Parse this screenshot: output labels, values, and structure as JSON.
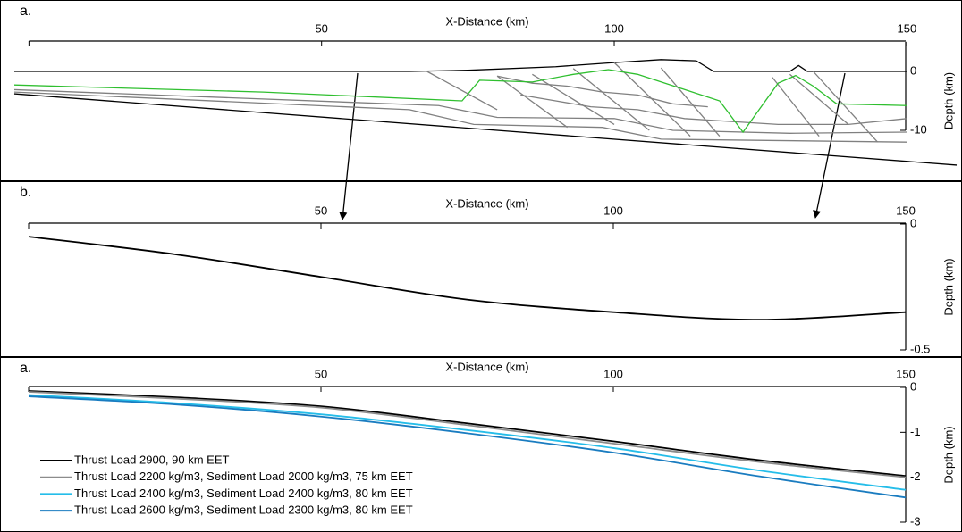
{
  "chart_data": [
    {
      "type": "line",
      "panel_label": "a.",
      "xlabel": "X-Distance (km)",
      "ylabel": "Depth (km)",
      "xlim": [
        -2.5,
        158.5
      ],
      "ylim": [
        -18,
        5
      ],
      "xticks": [
        0,
        50,
        100,
        150
      ],
      "xtick_labels_shown": [
        false,
        true,
        true,
        true
      ],
      "yticks": [
        0,
        -10
      ],
      "series": [
        {
          "color": "#000000",
          "x": [
            -2.5,
            65,
            75,
            90,
            100,
            108,
            114,
            117,
            130,
            131.5,
            133,
            150
          ],
          "values": [
            0,
            0,
            0.2,
            0.8,
            1.5,
            2,
            1.8,
            0,
            0,
            1,
            0,
            0
          ]
        },
        {
          "color": "#000000",
          "x": [
            -2.5,
            158.5
          ],
          "values": [
            -3.8,
            -15.9
          ]
        },
        {
          "color": "#808080",
          "x": [
            -2.5,
            70,
            80,
            100,
            110,
            130,
            150
          ],
          "values": [
            -3.1,
            -5.8,
            -7.8,
            -8,
            -10,
            -10.5,
            -10.3
          ]
        },
        {
          "color": "#808080",
          "x": [
            -2.5,
            65,
            76,
            98,
            108,
            150
          ],
          "values": [
            -3.5,
            -6.5,
            -9,
            -9.5,
            -11.5,
            -12
          ]
        },
        {
          "color": "#808080",
          "x": [
            80,
            86,
            92,
            98,
            104,
            110,
            116
          ],
          "values": [
            -0.8,
            -2,
            -2.5,
            -3.5,
            -4,
            -5.5,
            -6
          ]
        },
        {
          "color": "#808080",
          "x": [
            84,
            90,
            96,
            104,
            112,
            120,
            128,
            140,
            150
          ],
          "values": [
            -4,
            -5,
            -6,
            -6.5,
            -8,
            -8.5,
            -9,
            -9,
            -8
          ]
        },
        {
          "color": "#808080",
          "x": [
            68,
            80
          ],
          "values": [
            0,
            -6.5
          ]
        },
        {
          "color": "#808080",
          "x": [
            80,
            92
          ],
          "values": [
            -0.8,
            -9.5
          ]
        },
        {
          "color": "#808080",
          "x": [
            86,
            100
          ],
          "values": [
            -0.5,
            -9
          ]
        },
        {
          "color": "#808080",
          "x": [
            93,
            106
          ],
          "values": [
            0.5,
            -10
          ]
        },
        {
          "color": "#808080",
          "x": [
            100,
            113
          ],
          "values": [
            1.5,
            -11
          ]
        },
        {
          "color": "#808080",
          "x": [
            108,
            118
          ],
          "values": [
            0.6,
            -11
          ]
        },
        {
          "color": "#808080",
          "x": [
            127,
            135
          ],
          "values": [
            -1,
            -11
          ]
        },
        {
          "color": "#808080",
          "x": [
            130,
            140
          ],
          "values": [
            -0.5,
            -9
          ]
        },
        {
          "color": "#808080",
          "x": [
            134,
            145
          ],
          "values": [
            0,
            -12
          ]
        },
        {
          "color": "#2fbf2f",
          "x": [
            -2.5,
            40,
            74,
            77,
            86,
            93,
            99,
            104,
            118,
            122,
            128,
            131,
            134,
            138,
            150
          ],
          "values": [
            -2.3,
            -3.5,
            -5,
            -1.5,
            -1.8,
            -0.5,
            0.3,
            -0.5,
            -5,
            -10.3,
            -2,
            -0.7,
            -2.5,
            -5.5,
            -5.8
          ]
        }
      ]
    },
    {
      "type": "line",
      "panel_label": "b.",
      "xlabel": "X-Distance (km)",
      "ylabel": "Depth (km)",
      "xlim": [
        0,
        150
      ],
      "ylim": [
        -0.5,
        0
      ],
      "xticks": [
        0,
        50,
        100,
        150
      ],
      "xtick_labels_shown": [
        false,
        true,
        true,
        true
      ],
      "yticks": [
        0,
        -0.5
      ],
      "x": [
        0,
        25,
        50,
        75,
        100,
        125,
        150
      ],
      "series": [
        {
          "color": "#000000",
          "values": [
            -0.05,
            -0.12,
            -0.21,
            -0.3,
            -0.35,
            -0.38,
            -0.35
          ]
        }
      ]
    },
    {
      "type": "line",
      "panel_label": "a.",
      "xlabel": "X-Distance (km)",
      "ylabel": "Depth (km)",
      "xlim": [
        0,
        150
      ],
      "ylim": [
        -3,
        0
      ],
      "xticks": [
        0,
        50,
        100,
        150
      ],
      "xtick_labels_shown": [
        false,
        true,
        true,
        true
      ],
      "yticks": [
        0,
        -1,
        -2,
        -3
      ],
      "legend": "lower left",
      "x": [
        0,
        25,
        50,
        75,
        100,
        125,
        150
      ],
      "series": [
        {
          "name": "Thrust Load 2900, 90 km EET",
          "color": "#000000",
          "values": [
            -0.08,
            -0.22,
            -0.42,
            -0.8,
            -1.2,
            -1.62,
            -1.97
          ]
        },
        {
          "name": "Thrust Load 2200 kg/m3, Sediment Load 2000 kg/m3, 75 km EET",
          "color": "#8c8c8c",
          "values": [
            -0.1,
            -0.25,
            -0.45,
            -0.84,
            -1.25,
            -1.66,
            -2.0
          ]
        },
        {
          "name": "Thrust Load 2400 kg/m3, Sediment Load 2400 kg/m3, 80 km EET",
          "color": "#25bde9",
          "values": [
            -0.17,
            -0.35,
            -0.6,
            -0.95,
            -1.35,
            -1.85,
            -2.28
          ]
        },
        {
          "name": "Thrust Load 2600 kg/m3, Sediment Load 2300 kg/m3, 80 km EET",
          "color": "#1a7cc0",
          "values": [
            -0.2,
            -0.38,
            -0.65,
            -1.02,
            -1.45,
            -1.98,
            -2.45
          ]
        }
      ]
    }
  ]
}
